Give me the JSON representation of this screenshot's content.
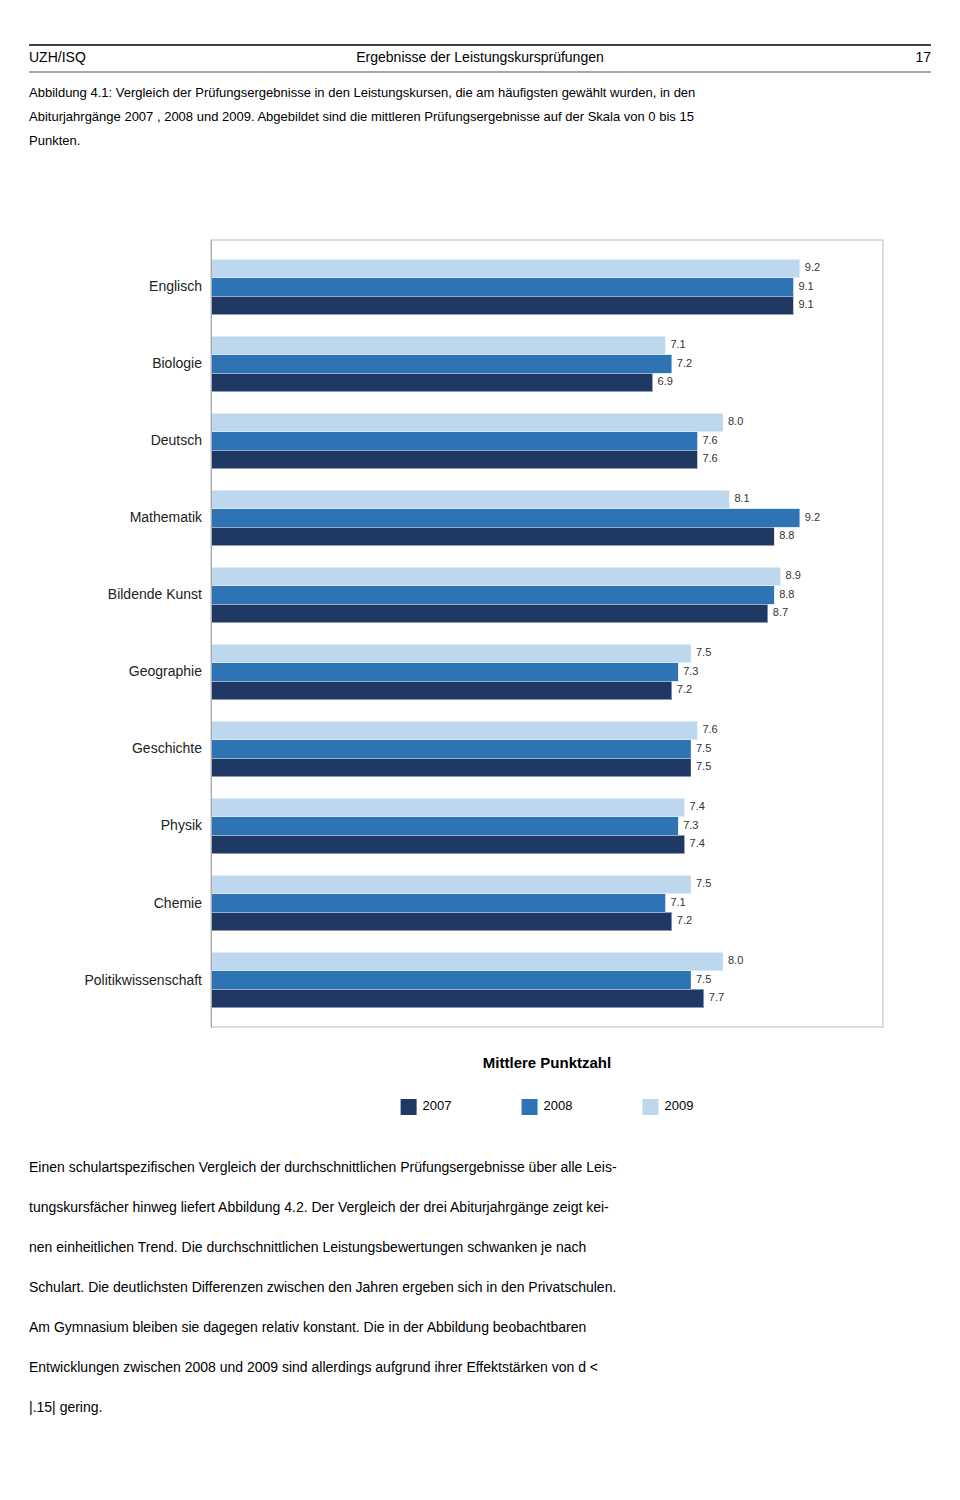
{
  "header": [
    "UZH/ISQ",
    "Ergebnisse der Leistungskursprüfungen",
    "17"
  ],
  "caption": [
    "Abbildung 4.1: Vergleich der Prüfungsergebnisse in den Leistungskursen, die am häufigsten gewählt wurden, in den",
    "Abiturjahrgänge 2007 , 2008 und 2009. Abgebildet sind die mittleren Prüfungsergebnisse auf der Skala von 0 bis 15",
    "Punkten."
  ],
  "body_text": [
    "Einen schulartspezifischen Vergleich der durchschnittlichen Prüfungsergebnisse über alle Leis-",
    "tungskursfächer hinweg liefert Abbildung 4.2. Der Vergleich der drei Abiturjahrgänge zeigt kei-",
    "nen einheitlichen Trend. Die durchschnittlichen Leistungsbewertungen schwanken je nach",
    "Schulart. Die deutlichsten Differenzen zwischen den Jahren ergeben sich in den Privatschulen.",
    "Am Gymnasium bleiben sie dagegen relativ konstant. Die in der Abbildung beobachtbaren",
    "Entwicklungen zwischen 2008 und 2009 sind allerdings aufgrund ihrer Effektstärken von d <",
    "|.15| gering."
  ],
  "chart_data": {
    "type": "bar",
    "orientation": "horizontal",
    "xlabel": "Mittlere Punktzahl",
    "categories": [
      "Politikwissenschaft",
      "Chemie",
      "Physik",
      "Geschichte",
      "Geographie",
      "Bildende Kunst",
      "Mathematik",
      "Deutsch",
      "Biologie",
      "Englisch"
    ],
    "series": [
      {
        "name": "2007",
        "color": "#1F3864",
        "values": [
          7.7,
          7.2,
          7.4,
          7.5,
          7.2,
          8.7,
          8.8,
          7.6,
          6.9,
          9.1
        ],
        "value_labels": [
          "7.7",
          "7.2",
          "7.4",
          "7.5",
          "7.2",
          "8.7",
          "8.8",
          "7.6",
          "6.9",
          "9.1"
        ]
      },
      {
        "name": "2008",
        "color": "#2E74B5",
        "values": [
          7.5,
          7.1,
          7.3,
          7.5,
          7.3,
          8.8,
          9.2,
          7.6,
          7.2,
          9.1
        ],
        "value_labels": [
          "7.5",
          "7.1",
          "7.3",
          "7.5",
          "7.3",
          "8.8",
          "9.2",
          "7.6",
          "7.2",
          "9.1"
        ]
      },
      {
        "name": "2009",
        "color": "#BDD7EE",
        "values": [
          8.0,
          7.5,
          7.4,
          7.6,
          7.5,
          8.9,
          8.1,
          8.0,
          7.1,
          9.2
        ],
        "value_labels": [
          "8.0",
          "7.5",
          "7.4",
          "7.6",
          "7.5",
          "8.9",
          "8.1",
          "8.0",
          "7.1",
          "9.2"
        ]
      }
    ],
    "xlim": [
      0,
      10.5
    ],
    "grid": false,
    "data_labels": true,
    "tick_labels": "y"
  }
}
